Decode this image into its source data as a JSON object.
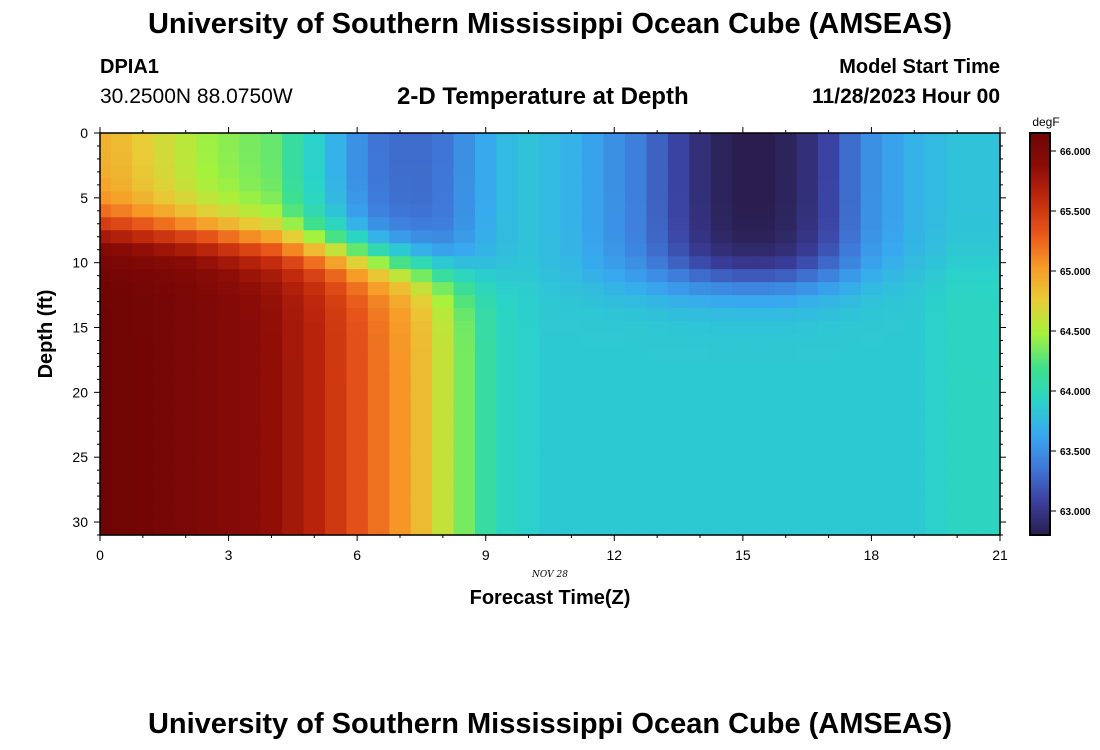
{
  "header": {
    "title": "University of Southern Mississippi Ocean Cube (AMSEAS)",
    "station": "DPIA1",
    "coords": "30.2500N  88.0750W",
    "subtitle": "2-D Temperature at Depth",
    "model_start_label": "Model Start Time",
    "model_start_date": "11/28/2023 Hour 00"
  },
  "footer": {
    "title": "University of Southern Mississippi Ocean Cube (AMSEAS)"
  },
  "chart_data": {
    "type": "heatmap",
    "title": "2-D Temperature at Depth",
    "xlabel": "Forecast Time(Z)",
    "ylabel": "Depth (ft)",
    "xlim": [
      0,
      21
    ],
    "ylim": [
      0,
      31
    ],
    "xticks": [
      0,
      3,
      6,
      9,
      12,
      15,
      18,
      21
    ],
    "yticks": [
      0,
      5,
      10,
      15,
      20,
      25,
      30
    ],
    "date_annotation": "NOV 28",
    "colorbar": {
      "unit": "degF",
      "min": 62.8,
      "max": 66.15,
      "ticks": [
        "63.000",
        "63.500",
        "64.000",
        "64.500",
        "65.000",
        "65.500",
        "66.000"
      ],
      "colors": [
        "#2a1e4e",
        "#3b3f9e",
        "#3f78d8",
        "#38a8f0",
        "#2ad4c8",
        "#3fe08c",
        "#a6f23c",
        "#e8cc36",
        "#f79a27",
        "#e8561a",
        "#c22a0c",
        "#8c0c07",
        "#6e0505"
      ]
    },
    "x_hours": [
      0,
      0.5,
      1,
      1.5,
      2,
      2.5,
      3,
      3.5,
      4,
      4.5,
      5,
      5.5,
      6,
      6.5,
      7,
      7.5,
      8,
      8.5,
      9,
      9.5,
      10,
      10.5,
      11,
      11.5,
      12,
      12.5,
      13,
      13.5,
      14,
      14.5,
      15,
      15.5,
      16,
      16.5,
      17,
      17.5,
      18,
      18.5,
      19,
      19.5,
      20,
      20.5,
      21
    ],
    "depth_levels_ft": [
      0,
      1,
      2,
      3,
      4,
      5,
      6,
      7,
      8,
      9,
      10,
      11,
      12,
      13,
      14,
      15,
      16,
      17,
      18,
      19,
      20,
      21,
      22,
      23,
      24,
      25,
      26,
      27,
      28,
      29,
      30,
      31
    ],
    "surface_profile_degF": [
      64.9,
      64.85,
      64.75,
      64.65,
      64.55,
      64.45,
      64.4,
      64.35,
      64.3,
      64.1,
      63.9,
      63.7,
      63.5,
      63.35,
      63.3,
      63.3,
      63.35,
      63.5,
      63.65,
      63.75,
      63.8,
      63.75,
      63.7,
      63.6,
      63.5,
      63.4,
      63.25,
      63.1,
      62.95,
      62.85,
      62.8,
      62.8,
      62.85,
      62.95,
      63.1,
      63.3,
      63.5,
      63.6,
      63.7,
      63.75,
      63.8,
      63.8,
      63.8
    ],
    "bottom_profile_degF": [
      66.15,
      66.12,
      66.1,
      66.08,
      66.05,
      66.0,
      65.95,
      65.9,
      65.85,
      65.75,
      65.65,
      65.5,
      65.35,
      65.2,
      65.05,
      64.85,
      64.6,
      64.35,
      64.1,
      63.95,
      63.9,
      63.85,
      63.85,
      63.85,
      63.85,
      63.85,
      63.85,
      63.85,
      63.85,
      63.85,
      63.85,
      63.85,
      63.85,
      63.85,
      63.85,
      63.85,
      63.85,
      63.85,
      63.85,
      63.9,
      63.95,
      63.95,
      63.95
    ],
    "mixed_layer_depth_ft": [
      7.2,
      7.3,
      7.4,
      7.5,
      7.6,
      7.7,
      7.9,
      8.1,
      8.3,
      8.5,
      8.8,
      9.0,
      9.3,
      9.6,
      9.9,
      10.2,
      10.5,
      10.8,
      11.0,
      11.2,
      11.3,
      11.4,
      11.5,
      11.5,
      11.5,
      11.5,
      11.5,
      11.5,
      11.5,
      11.5,
      11.5,
      11.5,
      11.5,
      11.4,
      11.3,
      11.2,
      11.0,
      10.8,
      10.6,
      10.4,
      10.2,
      10.0,
      10.0
    ]
  }
}
